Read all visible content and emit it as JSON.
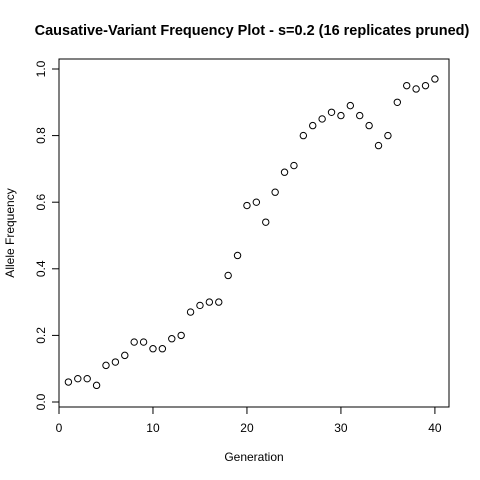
{
  "chart_data": {
    "type": "scatter",
    "title": "Causative-Variant Frequency Plot - s=0.2 (16 replicates pruned)",
    "xlabel": "Generation",
    "ylabel": "Allele Frequency",
    "xlim": [
      0,
      41.5
    ],
    "ylim": [
      -0.015,
      1.03
    ],
    "x_ticks": [
      0,
      10,
      20,
      30,
      40
    ],
    "x_tick_labels": [
      "0",
      "10",
      "20",
      "30",
      "40"
    ],
    "y_ticks": [
      0.0,
      0.2,
      0.4,
      0.6,
      0.8,
      1.0
    ],
    "y_tick_labels": [
      "0.0",
      "0.2",
      "0.4",
      "0.6",
      "0.8",
      "1.0"
    ],
    "grid": false,
    "marker": "open-circle",
    "x": [
      1,
      2,
      3,
      4,
      5,
      6,
      7,
      8,
      9,
      10,
      11,
      12,
      13,
      14,
      15,
      16,
      17,
      18,
      19,
      20,
      21,
      22,
      23,
      24,
      25,
      26,
      27,
      28,
      29,
      30,
      31,
      32,
      33,
      34,
      35,
      36,
      37,
      38,
      39,
      40
    ],
    "y": [
      0.06,
      0.07,
      0.07,
      0.05,
      0.11,
      0.12,
      0.14,
      0.18,
      0.18,
      0.16,
      0.16,
      0.19,
      0.2,
      0.27,
      0.29,
      0.3,
      0.3,
      0.38,
      0.44,
      0.59,
      0.6,
      0.54,
      0.63,
      0.69,
      0.71,
      0.8,
      0.83,
      0.85,
      0.87,
      0.86,
      0.89,
      0.86,
      0.83,
      0.77,
      0.8,
      0.9,
      0.95,
      0.94,
      0.95,
      0.97
    ]
  }
}
